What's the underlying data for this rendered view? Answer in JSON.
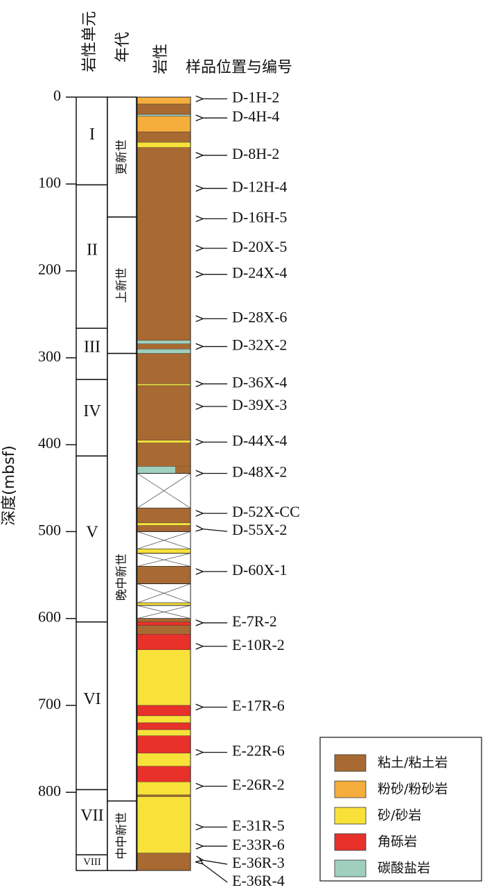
{
  "headers": {
    "units": "岩性单元",
    "age": "年代",
    "lithology": "岩性",
    "samples": "样品位置与编号"
  },
  "axis": {
    "label": "深度(mbsf)",
    "range": [
      0,
      890
    ],
    "ticks": [
      0,
      100,
      200,
      300,
      400,
      500,
      600,
      700,
      800
    ]
  },
  "units": [
    {
      "label": "I",
      "top": 0,
      "bottom": 101
    },
    {
      "label": "II",
      "top": 101,
      "bottom": 266
    },
    {
      "label": "III",
      "top": 266,
      "bottom": 325
    },
    {
      "label": "IV",
      "top": 325,
      "bottom": 413
    },
    {
      "label": "V",
      "top": 413,
      "bottom": 604
    },
    {
      "label": "VI",
      "top": 604,
      "bottom": 797
    },
    {
      "label": "VII",
      "top": 797,
      "bottom": 872
    },
    {
      "label": "VIII",
      "top": 872,
      "bottom": 890
    }
  ],
  "ages": [
    {
      "label": "更新世",
      "top": 0,
      "bottom": 138
    },
    {
      "label": "上新世",
      "top": 138,
      "bottom": 295
    },
    {
      "label": "晚中新世",
      "top": 295,
      "bottom": 810
    },
    {
      "label": "中中新世",
      "top": 810,
      "bottom": 890
    }
  ],
  "legend": [
    {
      "key": "clay",
      "label": "粘土/粘土岩",
      "color": "#a86a32"
    },
    {
      "key": "silt",
      "label": "粉砂/粉砂岩",
      "color": "#f5ad3c"
    },
    {
      "key": "sand",
      "label": "砂/砂岩",
      "color": "#f8e23a"
    },
    {
      "key": "breccia",
      "label": "角砾岩",
      "color": "#e8312b"
    },
    {
      "key": "carbonate",
      "label": "碳酸盐岩",
      "color": "#9fd0bd"
    }
  ],
  "lithology": [
    {
      "type": "silt",
      "top": 0,
      "bottom": 8
    },
    {
      "type": "clay",
      "top": 8,
      "bottom": 20
    },
    {
      "type": "carbonate",
      "top": 20,
      "bottom": 22
    },
    {
      "type": "silt",
      "top": 22,
      "bottom": 40
    },
    {
      "type": "clay",
      "top": 40,
      "bottom": 52
    },
    {
      "type": "sand",
      "top": 52,
      "bottom": 58
    },
    {
      "type": "clay",
      "top": 58,
      "bottom": 280
    },
    {
      "type": "carbonate",
      "top": 280,
      "bottom": 284
    },
    {
      "type": "clay",
      "top": 284,
      "bottom": 290
    },
    {
      "type": "carbonate",
      "top": 290,
      "bottom": 295
    },
    {
      "type": "clay",
      "top": 295,
      "bottom": 330
    },
    {
      "type": "sand",
      "top": 330,
      "bottom": 332
    },
    {
      "type": "clay",
      "top": 332,
      "bottom": 395
    },
    {
      "type": "sand",
      "top": 395,
      "bottom": 398
    },
    {
      "type": "clay",
      "top": 398,
      "bottom": 425
    },
    {
      "type": "carbonate",
      "top": 425,
      "bottom": 433
    },
    {
      "type": "gap",
      "top": 433,
      "bottom": 473
    },
    {
      "type": "clay",
      "top": 473,
      "bottom": 490
    },
    {
      "type": "sand",
      "top": 490,
      "bottom": 493
    },
    {
      "type": "clay",
      "top": 493,
      "bottom": 500
    },
    {
      "type": "gap",
      "top": 500,
      "bottom": 520
    },
    {
      "type": "sand",
      "top": 520,
      "bottom": 525
    },
    {
      "type": "gap",
      "top": 525,
      "bottom": 540
    },
    {
      "type": "clay",
      "top": 540,
      "bottom": 560
    },
    {
      "type": "gap",
      "top": 560,
      "bottom": 582
    },
    {
      "type": "sand",
      "top": 582,
      "bottom": 585
    },
    {
      "type": "gap",
      "top": 585,
      "bottom": 600
    },
    {
      "type": "clay",
      "top": 600,
      "bottom": 604
    },
    {
      "type": "breccia",
      "top": 604,
      "bottom": 608
    },
    {
      "type": "clay",
      "top": 608,
      "bottom": 618
    },
    {
      "type": "breccia",
      "top": 618,
      "bottom": 636
    },
    {
      "type": "sand",
      "top": 636,
      "bottom": 700
    },
    {
      "type": "breccia",
      "top": 700,
      "bottom": 712
    },
    {
      "type": "sand",
      "top": 712,
      "bottom": 720
    },
    {
      "type": "breccia",
      "top": 720,
      "bottom": 728
    },
    {
      "type": "sand",
      "top": 728,
      "bottom": 735
    },
    {
      "type": "breccia",
      "top": 735,
      "bottom": 755
    },
    {
      "type": "sand",
      "top": 755,
      "bottom": 770
    },
    {
      "type": "breccia",
      "top": 770,
      "bottom": 788
    },
    {
      "type": "sand",
      "top": 788,
      "bottom": 803
    },
    {
      "type": "clay",
      "top": 803,
      "bottom": 805
    },
    {
      "type": "sand",
      "top": 805,
      "bottom": 870
    },
    {
      "type": "clay",
      "top": 870,
      "bottom": 890
    }
  ],
  "samples": [
    {
      "label": "D-1H-2",
      "depth": 2
    },
    {
      "label": "D-4H-4",
      "depth": 24
    },
    {
      "label": "D-8H-2",
      "depth": 67
    },
    {
      "label": "D-12H-4",
      "depth": 105
    },
    {
      "label": "D-16H-5",
      "depth": 140
    },
    {
      "label": "D-20X-5",
      "depth": 174
    },
    {
      "label": "D-24X-4",
      "depth": 204
    },
    {
      "label": "D-28X-6",
      "depth": 255
    },
    {
      "label": "D-32X-2",
      "depth": 287
    },
    {
      "label": "D-36X-4",
      "depth": 330
    },
    {
      "label": "D-39X-3",
      "depth": 356
    },
    {
      "label": "D-44X-4",
      "depth": 397
    },
    {
      "label": "D-48X-2",
      "depth": 433
    },
    {
      "label": "D-52X-CC",
      "depth": 479
    },
    {
      "label": "D-55X-2",
      "depth": 497
    },
    {
      "label": "D-60X-1",
      "depth": 546
    },
    {
      "label": "E-7R-2",
      "depth": 605
    },
    {
      "label": "E-10R-2",
      "depth": 632
    },
    {
      "label": "E-17R-6",
      "depth": 702
    },
    {
      "label": "E-22R-6",
      "depth": 754
    },
    {
      "label": "E-26R-2",
      "depth": 793
    },
    {
      "label": "E-31R-5",
      "depth": 840
    },
    {
      "label": "E-33R-6",
      "depth": 862
    },
    {
      "label": "E-36R-3",
      "depth": 878
    },
    {
      "label": "E-36R-4",
      "depth": 882
    }
  ]
}
